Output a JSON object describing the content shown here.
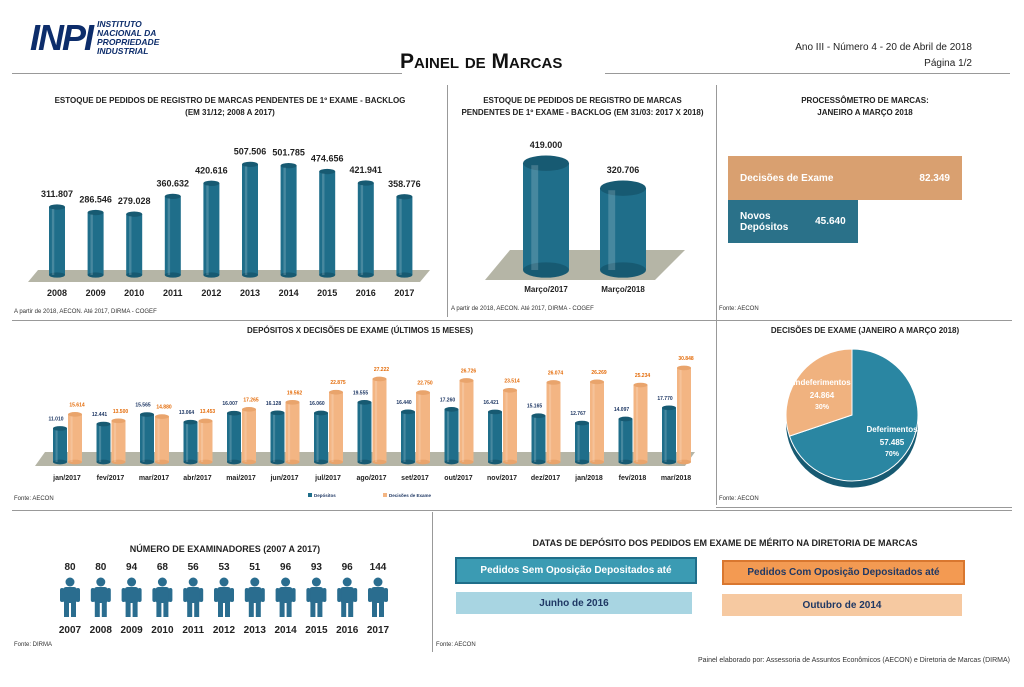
{
  "header": {
    "logo_mark": "INPI",
    "logo_text": "INSTITUTO NACIONAL DA PROPRIEDADE INDUSTRIAL",
    "title": "Painel de Marcas",
    "issue": "Ano III - Número 4 - 20 de Abril de 2018",
    "page": "Página 1/2"
  },
  "colors": {
    "teal": "#1f6e8a",
    "peach": "#f3b583",
    "orange_label": "#e46c0a",
    "navy_label": "#1f3864"
  },
  "chart_data": [
    {
      "type": "bar",
      "title": "ESTOQUE DE PEDIDOS DE REGISTRO DE MARCAS PENDENTES DE 1º EXAME - BACKLOG",
      "subtitle": "(EM 31/12; 2008 A 2017)",
      "categories": [
        "2008",
        "2009",
        "2010",
        "2011",
        "2012",
        "2013",
        "2014",
        "2015",
        "2016",
        "2017"
      ],
      "values": [
        311807,
        286546,
        279028,
        360632,
        420616,
        507506,
        501785,
        474656,
        421941,
        358776
      ],
      "labels": [
        "311.807",
        "286.546",
        "279.028",
        "360.632",
        "420.616",
        "507.506",
        "501.785",
        "474.656",
        "421.941",
        "358.776"
      ],
      "source": "A partir de 2018, AECON. Até 2017, DIRMA - COGEF"
    },
    {
      "type": "bar",
      "title": "ESTOQUE DE PEDIDOS DE REGISTRO DE MARCAS",
      "subtitle": "PENDENTES DE 1º EXAME - BACKLOG (EM 31/03: 2017 X 2018)",
      "categories": [
        "Março/2017",
        "Março/2018"
      ],
      "values": [
        419000,
        320706
      ],
      "labels": [
        "419.000",
        "320.706"
      ],
      "source": "A partir de 2018, AECON. Até 2017, DIRMA - COGEF"
    },
    {
      "type": "bar",
      "title": "PROCESSÔMETRO DE MARCAS:",
      "subtitle": "JANEIRO A MARÇO 2018",
      "categories": [
        "Decisões de Exame",
        "Novos Depósitos"
      ],
      "values": [
        82349,
        45640
      ],
      "labels": [
        "82.349",
        "45.640"
      ],
      "source": "Fonte: AECON"
    },
    {
      "type": "bar",
      "title": "DEPÓSITOS X DECISÕES DE EXAME (ÚLTIMOS 15 MESES)",
      "categories": [
        "jan/2017",
        "fev/2017",
        "mar/2017",
        "abr/2017",
        "mai/2017",
        "jun/2017",
        "jul/2017",
        "ago/2017",
        "set/2017",
        "out/2017",
        "nov/2017",
        "dez/2017",
        "jan/2018",
        "fev/2018",
        "mar/2018"
      ],
      "series": [
        {
          "name": "Depósitos",
          "values": [
            11010,
            12441,
            15565,
            13064,
            16007,
            16128,
            16060,
            19555,
            16440,
            17260,
            16421,
            15165,
            12767,
            14097,
            17770
          ],
          "labels": [
            "11.010",
            "12.441",
            "15.565",
            "13.064",
            "16.007",
            "16.128",
            "16.060",
            "19.555",
            "16.440",
            "17.260",
            "16.421",
            "15.165",
            "12.767",
            "14.097",
            "17.770"
          ]
        },
        {
          "name": "Decisões de Exame",
          "values": [
            15614,
            13500,
            14880,
            13453,
            17265,
            19562,
            22875,
            27222,
            22750,
            26726,
            23514,
            26074,
            26269,
            25234,
            30848
          ],
          "labels": [
            "15.614",
            "13.500",
            "14.880",
            "13.453",
            "17.265",
            "19.562",
            "22.875",
            "27.222",
            "22.750",
            "26.726",
            "23.514",
            "26.074",
            "26.269",
            "25.234",
            "30.848"
          ]
        }
      ],
      "legend": "bottom",
      "source": "Fonte: AECON"
    },
    {
      "type": "pie",
      "title": "DECISÕES DE EXAME (JANEIRO A MARÇO 2018)",
      "slices": [
        {
          "name": "Deferimentos",
          "value": 57485,
          "label": "57.485",
          "pct": "70%"
        },
        {
          "name": "Indeferimentos",
          "value": 24864,
          "label": "24.864",
          "pct": "30%"
        }
      ],
      "source": "Fonte: AECON"
    },
    {
      "type": "bar",
      "title": "NÚMERO DE EXAMINADORES (2007 A 2017)",
      "categories": [
        "2007",
        "2008",
        "2009",
        "2010",
        "2011",
        "2012",
        "2013",
        "2014",
        "2015",
        "2016",
        "2017"
      ],
      "values": [
        80,
        80,
        94,
        68,
        56,
        53,
        51,
        96,
        93,
        96,
        144
      ],
      "source": "Fonte: DIRMA"
    }
  ],
  "dates": {
    "title": "DATAS DE DEPÓSITO DOS PEDIDOS EM EXAME DE MÉRITO NA DIRETORIA DE MARCAS",
    "sem_label": "Pedidos Sem Oposição Depositados até",
    "sem_value": "Junho de 2016",
    "com_label": "Pedidos Com Oposição Depositados até",
    "com_value": "Outubro de 2014",
    "source": "Fonte: AECON"
  },
  "footer": "Painel elaborado por: Assessoria de Assuntos Econômicos (AECON) e Diretoria de Marcas (DIRMA)"
}
